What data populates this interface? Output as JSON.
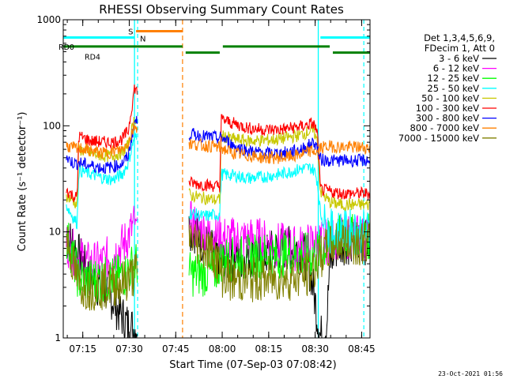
{
  "chart_data": {
    "type": "line",
    "title": "RHESSI Observing Summary Count Rates",
    "xlabel": "Start Time (07-Sep-03 07:08:42)",
    "ylabel": "Count Rate (s⁻¹ detector⁻¹)",
    "yscale": "log",
    "ylim": [
      1,
      1000
    ],
    "xlim_minutes": [
      0,
      99
    ],
    "x_unit": "minutes after 07:08:42",
    "x_ticks": [
      {
        "label": "07:15",
        "t": 6.3
      },
      {
        "label": "07:30",
        "t": 21.3
      },
      {
        "label": "07:45",
        "t": 36.3
      },
      {
        "label": "08:00",
        "t": 51.3
      },
      {
        "label": "08:15",
        "t": 66.3
      },
      {
        "label": "08:30",
        "t": 81.3
      },
      {
        "label": "08:45",
        "t": 96.3
      }
    ],
    "y_ticks": [
      {
        "label": "1",
        "v": 1
      },
      {
        "label": "10",
        "v": 10
      },
      {
        "label": "100",
        "v": 100
      },
      {
        "label": "1000",
        "v": 1000
      }
    ],
    "legend_header": [
      "Det 1,3,4,5,6,9,",
      "FDecim 1, Att 0"
    ],
    "legend_position": "right",
    "footer_date": "23-Oct-2021 01:56",
    "flag_labels": {
      "saa": "S",
      "night": "N",
      "rd0": "RD0",
      "rd4": "RD4"
    },
    "flags": {
      "saa_bar": {
        "start": 23.5,
        "end": 38.5,
        "level": 780,
        "color": "#ff8000"
      },
      "night_bars": [
        {
          "start": 0,
          "end": 23.0,
          "level": 680
        },
        {
          "start": 83.0,
          "end": 99,
          "level": 680
        }
      ],
      "night_color": "#00ffff",
      "rd_bars": [
        {
          "start": 0,
          "end": 38.5,
          "level": 560
        },
        {
          "start": 39.5,
          "end": 50.5,
          "level": 490
        },
        {
          "start": 51.5,
          "end": 86.0,
          "level": 560
        },
        {
          "start": 87.0,
          "end": 99,
          "level": 490
        }
      ],
      "rd_color": "#008000",
      "cyan_vlines": [
        23.0,
        82.3
      ],
      "cyan_dashed": [
        24.0,
        97.0
      ],
      "orange_dashed": [
        38.5
      ]
    },
    "gaps": [
      [
        24.0,
        40.5
      ]
    ],
    "series": [
      {
        "name": "3 - 6 keV",
        "color": "#000000",
        "points": [
          [
            1,
            8.5
          ],
          [
            3,
            8
          ],
          [
            5,
            6
          ],
          [
            8,
            4
          ],
          [
            12,
            3
          ],
          [
            15,
            2.6
          ],
          [
            17,
            2
          ],
          [
            19,
            1.6
          ],
          [
            21,
            1.3
          ],
          [
            23,
            1.2
          ],
          [
            41,
            11
          ],
          [
            43,
            10
          ],
          [
            45,
            8
          ],
          [
            47,
            7
          ],
          [
            49,
            6
          ],
          [
            51,
            5
          ],
          [
            55,
            5.5
          ],
          [
            60,
            6
          ],
          [
            65,
            6
          ],
          [
            70,
            7
          ],
          [
            75,
            7
          ],
          [
            78,
            6
          ],
          [
            80,
            4
          ],
          [
            81.5,
            2
          ],
          [
            83,
            1
          ],
          [
            85,
            1.3
          ],
          [
            86,
            5
          ],
          [
            88,
            7
          ],
          [
            90,
            8
          ],
          [
            95,
            8
          ],
          [
            99,
            8
          ]
        ]
      },
      {
        "name": "6 - 12 keV",
        "color": "#ff00ff",
        "points": [
          [
            1,
            8
          ],
          [
            4,
            6
          ],
          [
            8,
            5
          ],
          [
            12,
            5
          ],
          [
            16,
            6
          ],
          [
            20,
            8
          ],
          [
            23,
            12
          ],
          [
            41,
            12
          ],
          [
            43,
            11
          ],
          [
            46,
            10
          ],
          [
            50,
            9
          ],
          [
            53,
            8.5
          ],
          [
            58,
            8.5
          ],
          [
            62,
            8.5
          ],
          [
            66,
            8
          ],
          [
            70,
            7.5
          ],
          [
            75,
            7
          ],
          [
            80,
            7.5
          ],
          [
            83,
            8
          ],
          [
            86,
            8
          ],
          [
            88,
            9
          ],
          [
            92,
            9
          ],
          [
            96,
            9
          ],
          [
            99,
            9
          ]
        ]
      },
      {
        "name": "12 - 25 keV",
        "color": "#00ff00",
        "points": [
          [
            1,
            9
          ],
          [
            3,
            6
          ],
          [
            5,
            3.6
          ],
          [
            8,
            3.5
          ],
          [
            12,
            3.6
          ],
          [
            16,
            3.6
          ],
          [
            20,
            4
          ],
          [
            23,
            5
          ],
          [
            41,
            4
          ],
          [
            45,
            4
          ],
          [
            49,
            4.2
          ],
          [
            51,
            5.5
          ],
          [
            55,
            5.5
          ],
          [
            60,
            5.8
          ],
          [
            66,
            6
          ],
          [
            70,
            6
          ],
          [
            75,
            6
          ],
          [
            80,
            6
          ],
          [
            83,
            6.5
          ],
          [
            86,
            8
          ],
          [
            88,
            9
          ],
          [
            92,
            9
          ],
          [
            96,
            9
          ],
          [
            99,
            9
          ]
        ]
      },
      {
        "name": "25 - 50 keV",
        "color": "#00ffff",
        "points": [
          [
            1,
            18
          ],
          [
            3,
            14
          ],
          [
            4.5,
            12
          ],
          [
            5,
            38
          ],
          [
            9,
            35
          ],
          [
            13,
            32
          ],
          [
            16,
            31
          ],
          [
            19,
            35
          ],
          [
            21,
            45
          ],
          [
            23,
            80
          ],
          [
            41,
            15
          ],
          [
            45,
            14
          ],
          [
            49,
            14.5
          ],
          [
            50.5,
            14.5
          ],
          [
            51,
            35
          ],
          [
            55,
            34
          ],
          [
            60,
            32
          ],
          [
            65,
            33
          ],
          [
            70,
            35
          ],
          [
            75,
            38
          ],
          [
            78,
            40
          ],
          [
            80,
            40
          ],
          [
            81,
            38
          ],
          [
            82,
            30
          ],
          [
            83,
            15
          ],
          [
            84,
            12
          ],
          [
            86,
            10
          ],
          [
            90,
            10
          ],
          [
            95,
            10
          ],
          [
            99,
            10
          ]
        ]
      },
      {
        "name": "50 - 100 keV",
        "color": "#c8c800",
        "points": [
          [
            1,
            22
          ],
          [
            3,
            20
          ],
          [
            4.5,
            18
          ],
          [
            5,
            60
          ],
          [
            9,
            55
          ],
          [
            13,
            52
          ],
          [
            16,
            52
          ],
          [
            19,
            56
          ],
          [
            21,
            65
          ],
          [
            23,
            120
          ],
          [
            41,
            22
          ],
          [
            45,
            21
          ],
          [
            49,
            20
          ],
          [
            50.5,
            20
          ],
          [
            51,
            80
          ],
          [
            55,
            75
          ],
          [
            60,
            72
          ],
          [
            65,
            73
          ],
          [
            70,
            75
          ],
          [
            75,
            80
          ],
          [
            78,
            85
          ],
          [
            80,
            90
          ],
          [
            81,
            88
          ],
          [
            82,
            70
          ],
          [
            83,
            24
          ],
          [
            86,
            19
          ],
          [
            90,
            18
          ],
          [
            95,
            18
          ],
          [
            99,
            18
          ]
        ]
      },
      {
        "name": "100 - 300 keV",
        "color": "#ff0000",
        "points": [
          [
            1,
            25
          ],
          [
            3,
            22
          ],
          [
            4.5,
            21
          ],
          [
            5,
            80
          ],
          [
            9,
            72
          ],
          [
            13,
            70
          ],
          [
            16,
            70
          ],
          [
            19,
            75
          ],
          [
            21,
            90
          ],
          [
            23,
            230
          ],
          [
            41,
            29
          ],
          [
            45,
            28
          ],
          [
            49,
            27
          ],
          [
            50.5,
            27
          ],
          [
            51,
            115
          ],
          [
            55,
            105
          ],
          [
            60,
            95
          ],
          [
            65,
            92
          ],
          [
            70,
            92
          ],
          [
            75,
            97
          ],
          [
            78,
            100
          ],
          [
            80,
            105
          ],
          [
            81,
            102
          ],
          [
            82,
            85
          ],
          [
            83,
            25
          ],
          [
            86,
            24
          ],
          [
            90,
            23
          ],
          [
            95,
            23
          ],
          [
            99,
            23
          ]
        ]
      },
      {
        "name": "300 - 800 keV",
        "color": "#0000ff",
        "points": [
          [
            1,
            50
          ],
          [
            3,
            45
          ],
          [
            4.5,
            44
          ],
          [
            5,
            45
          ],
          [
            9,
            42
          ],
          [
            13,
            40
          ],
          [
            16,
            41
          ],
          [
            19,
            44
          ],
          [
            21,
            52
          ],
          [
            23,
            110
          ],
          [
            41,
            84
          ],
          [
            45,
            80
          ],
          [
            49,
            78
          ],
          [
            50.5,
            75
          ],
          [
            51,
            78
          ],
          [
            55,
            65
          ],
          [
            60,
            58
          ],
          [
            65,
            55
          ],
          [
            70,
            55
          ],
          [
            75,
            58
          ],
          [
            78,
            62
          ],
          [
            80,
            68
          ],
          [
            81,
            70
          ],
          [
            82,
            62
          ],
          [
            83,
            48
          ],
          [
            86,
            47
          ],
          [
            90,
            47
          ],
          [
            95,
            47
          ],
          [
            99,
            47
          ]
        ]
      },
      {
        "name": "800 - 7000 keV",
        "color": "#ff8000",
        "points": [
          [
            1,
            65
          ],
          [
            3,
            62
          ],
          [
            4.5,
            60
          ],
          [
            5,
            62
          ],
          [
            9,
            58
          ],
          [
            13,
            55
          ],
          [
            16,
            57
          ],
          [
            19,
            60
          ],
          [
            21,
            70
          ],
          [
            23,
            100
          ],
          [
            41,
            68
          ],
          [
            45,
            65
          ],
          [
            49,
            64
          ],
          [
            50.5,
            62
          ],
          [
            51,
            62
          ],
          [
            55,
            55
          ],
          [
            60,
            52
          ],
          [
            65,
            50
          ],
          [
            70,
            50
          ],
          [
            75,
            52
          ],
          [
            78,
            55
          ],
          [
            80,
            58
          ],
          [
            81,
            58
          ],
          [
            82,
            55
          ],
          [
            83,
            62
          ],
          [
            86,
            64
          ],
          [
            90,
            63
          ],
          [
            95,
            63
          ],
          [
            99,
            62
          ]
        ]
      },
      {
        "name": "7000 - 15000 keV",
        "color": "#808000",
        "points": [
          [
            1,
            9
          ],
          [
            2,
            7
          ],
          [
            3,
            5
          ],
          [
            5,
            3.2
          ],
          [
            8,
            3
          ],
          [
            12,
            3
          ],
          [
            16,
            3.2
          ],
          [
            20,
            3.4
          ],
          [
            23,
            4
          ],
          [
            41,
            9
          ],
          [
            43,
            8
          ],
          [
            46,
            7
          ],
          [
            49,
            6
          ],
          [
            51,
            4
          ],
          [
            55,
            3.5
          ],
          [
            60,
            3.5
          ],
          [
            65,
            3.6
          ],
          [
            70,
            3.6
          ],
          [
            75,
            3.8
          ],
          [
            80,
            4
          ],
          [
            83,
            6
          ],
          [
            86,
            7
          ],
          [
            88,
            8
          ],
          [
            92,
            8
          ],
          [
            96,
            8
          ],
          [
            99,
            8
          ]
        ]
      }
    ]
  }
}
